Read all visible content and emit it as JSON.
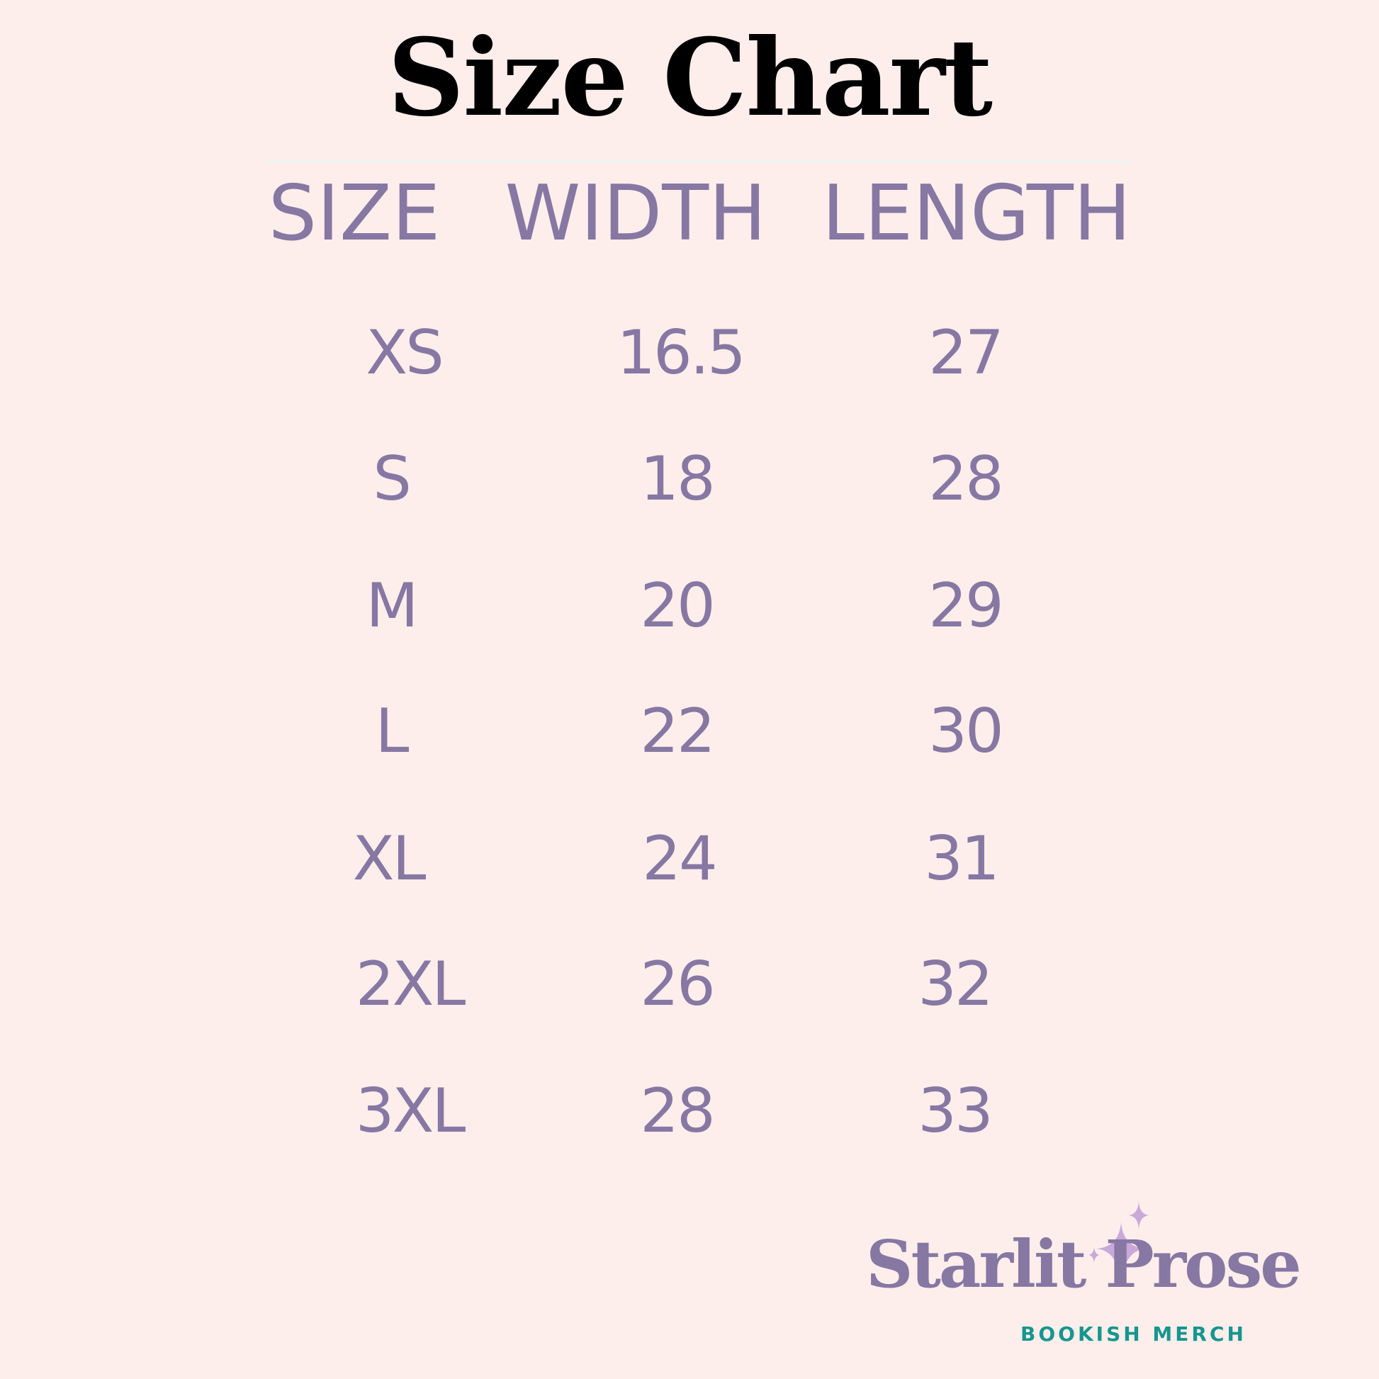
{
  "title": "Size Chart",
  "table": {
    "headers": [
      "SIZE",
      "WIDTH",
      "LENGTH"
    ],
    "rows": [
      [
        "XS",
        "16.5",
        "27"
      ],
      [
        "S",
        "18",
        "28"
      ],
      [
        "M",
        "20",
        "29"
      ],
      [
        "L",
        "22",
        "30"
      ],
      [
        "XL",
        "24",
        "31"
      ],
      [
        "2XL",
        "26",
        "32"
      ],
      [
        "3XL",
        "28",
        "33"
      ]
    ]
  },
  "logo": {
    "name": "Starlit Prose",
    "tagline": "BOOKISH MERCH",
    "icon": "sparkle-stars-icon"
  },
  "colors": {
    "background": "#fdeeeb",
    "text_purple": "#8777a3",
    "teal": "#16968f",
    "star": "#c9a9d9"
  }
}
